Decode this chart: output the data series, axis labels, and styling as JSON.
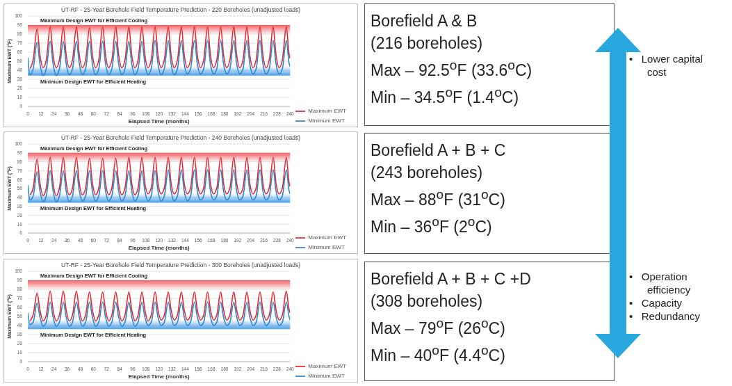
{
  "chart_data": [
    {
      "type": "line",
      "title": "UT-RF - 25-Year Borehole Field Temperature Prediction - 220 Boreholes (unadjusted loads)",
      "xlabel": "Elapsed Time (months)",
      "ylabel": "Maximum EWT (°F)",
      "xlim": [
        0,
        240
      ],
      "xticks": [
        0,
        12,
        24,
        36,
        48,
        60,
        72,
        84,
        96,
        108,
        120,
        132,
        144,
        156,
        168,
        180,
        192,
        204,
        216,
        228,
        240
      ],
      "ylim": [
        0,
        100
      ],
      "yticks": [
        0,
        10,
        20,
        30,
        40,
        50,
        60,
        70,
        80,
        90,
        100
      ],
      "grid": "y",
      "legend": "bottom right",
      "marker": "none",
      "line_style": "solid",
      "x": [
        0,
        2,
        5,
        8.5,
        11,
        14,
        17,
        20.5,
        23,
        26,
        29,
        32.5,
        35,
        38,
        41,
        44.5,
        47,
        50,
        53,
        56.5,
        59,
        62,
        65,
        68.5,
        71,
        74,
        77,
        80.5,
        83,
        86,
        89,
        92.5,
        95,
        98,
        101,
        104.5,
        107,
        110,
        113,
        116.5,
        119,
        122,
        125,
        128.5,
        131,
        134,
        137,
        140.5,
        143,
        146,
        149,
        152.5,
        155,
        158,
        161,
        164.5,
        167,
        170,
        173,
        176.5,
        179,
        182,
        185,
        188.5,
        191,
        194,
        197,
        200.5,
        203,
        206,
        209,
        212.5,
        215,
        218,
        221,
        224.5,
        227,
        230,
        233,
        236.5,
        239,
        240
      ],
      "bands": [
        {
          "axis": "y",
          "from": 80,
          "to": 90,
          "label": "Maximum Design EWT for Efficient Cooling",
          "color": "#f0474d"
        },
        {
          "axis": "y",
          "from": 34,
          "to": 44,
          "label": "Minimum Design EWT for Efficient Heating",
          "color": "#2f8fe8"
        }
      ],
      "series": [
        {
          "name": "Maximum EWT",
          "color": "#e8262f",
          "values": [
            null,
            42,
            52,
            86,
            58,
            43,
            52,
            88,
            58,
            43,
            52,
            88,
            58,
            43,
            52,
            88,
            58,
            43,
            52,
            87,
            58,
            43,
            52,
            88,
            58,
            43,
            52,
            88,
            58,
            43,
            52,
            88,
            58,
            43,
            52,
            88,
            58,
            43,
            52,
            88,
            58,
            43,
            52,
            88,
            58,
            43,
            52,
            88,
            58,
            43,
            52,
            88,
            58,
            43,
            52,
            88,
            58,
            43,
            52,
            88,
            58,
            43,
            52,
            88,
            58,
            43,
            52,
            88,
            58,
            43,
            52,
            88,
            58,
            43,
            52,
            88,
            58,
            43,
            52,
            88,
            58,
            53
          ]
        },
        {
          "name": "Minimum EWT",
          "color": "#2e86c8",
          "values": [
            54,
            35,
            42,
            71,
            48,
            34,
            42,
            72,
            48,
            34,
            42,
            72,
            48,
            35,
            42,
            72,
            48,
            35,
            42,
            72,
            48,
            35,
            42,
            72,
            48,
            35,
            42,
            72,
            48,
            35,
            42,
            72,
            48,
            35,
            42,
            72,
            48,
            35,
            42,
            73,
            48,
            35,
            42,
            73,
            48,
            35,
            42,
            73,
            48,
            36,
            42,
            73,
            48,
            36,
            42,
            73,
            48,
            36,
            42,
            73,
            48,
            36,
            42,
            73,
            48,
            36,
            42,
            73,
            48,
            36,
            42,
            73,
            48,
            36,
            42,
            73,
            48,
            36,
            42,
            73,
            48,
            44
          ]
        }
      ]
    },
    {
      "type": "line",
      "title": "UT-RF - 25-Year Borehole Field Temperature Prediction - 240 Boreholes (unadjusted loads)",
      "xlabel": "Elapsed Time (months)",
      "ylabel": "Maximum EWT (°F)",
      "xlim": [
        0,
        240
      ],
      "xticks": [
        0,
        12,
        24,
        36,
        48,
        60,
        72,
        84,
        96,
        108,
        120,
        132,
        144,
        156,
        168,
        180,
        192,
        204,
        216,
        228,
        240
      ],
      "ylim": [
        0,
        100
      ],
      "yticks": [
        0,
        10,
        20,
        30,
        40,
        50,
        60,
        70,
        80,
        90,
        100
      ],
      "grid": "y",
      "legend": "bottom right",
      "marker": "none",
      "line_style": "solid",
      "x": [
        0,
        2,
        5,
        8.5,
        11,
        14,
        17,
        20.5,
        23,
        26,
        29,
        32.5,
        35,
        38,
        41,
        44.5,
        47,
        50,
        53,
        56.5,
        59,
        62,
        65,
        68.5,
        71,
        74,
        77,
        80.5,
        83,
        86,
        89,
        92.5,
        95,
        98,
        101,
        104.5,
        107,
        110,
        113,
        116.5,
        119,
        122,
        125,
        128.5,
        131,
        134,
        137,
        140.5,
        143,
        146,
        149,
        152.5,
        155,
        158,
        161,
        164.5,
        167,
        170,
        173,
        176.5,
        179,
        182,
        185,
        188.5,
        191,
        194,
        197,
        200.5,
        203,
        206,
        209,
        212.5,
        215,
        218,
        221,
        224.5,
        227,
        230,
        233,
        236.5,
        239,
        240
      ],
      "bands": [
        {
          "axis": "y",
          "from": 80,
          "to": 90,
          "label": "Maximum Design EWT for Efficient Cooling",
          "color": "#f0474d"
        },
        {
          "axis": "y",
          "from": 34,
          "to": 44,
          "label": "Minimum Design EWT for Efficient Heating",
          "color": "#2f8fe8"
        }
      ],
      "series": [
        {
          "name": "Maximum EWT",
          "color": "#e8262f",
          "values": [
            null,
            43,
            51,
            83,
            57,
            42,
            51,
            85,
            57,
            42,
            51,
            85,
            57,
            43,
            51,
            85,
            57,
            43,
            51,
            84,
            57,
            43,
            51,
            84,
            57,
            43,
            51,
            84,
            57,
            43,
            51,
            85,
            57,
            43,
            51,
            85,
            57,
            44,
            51,
            85,
            57,
            44,
            51,
            85,
            57,
            44,
            51,
            85,
            57,
            44,
            51,
            85,
            57,
            44,
            51,
            85,
            57,
            44,
            51,
            85,
            57,
            44,
            51,
            85,
            57,
            44,
            51,
            85,
            57,
            44,
            51,
            85,
            57,
            44,
            51,
            85,
            57,
            44,
            51,
            85,
            57,
            52
          ]
        },
        {
          "name": "Minimum EWT",
          "color": "#2e86c8",
          "values": [
            54,
            37,
            42,
            69,
            48,
            35,
            42,
            70,
            48,
            35,
            42,
            70,
            48,
            35,
            42,
            70,
            48,
            36,
            42,
            70,
            48,
            36,
            42,
            70,
            48,
            36,
            42,
            70,
            48,
            36,
            42,
            70,
            48,
            36,
            42,
            70,
            48,
            36,
            42,
            70,
            48,
            36,
            42,
            71,
            48,
            36,
            42,
            71,
            48,
            36,
            42,
            71,
            48,
            37,
            42,
            71,
            48,
            37,
            42,
            71,
            48,
            37,
            42,
            71,
            48,
            37,
            42,
            71,
            48,
            37,
            42,
            71,
            48,
            37,
            42,
            71,
            48,
            37,
            42,
            71,
            48,
            44
          ]
        }
      ]
    },
    {
      "type": "line",
      "title": "UT-RF - 25-Year Borehole Field Temperature Prediction - 300 Boreholes (unadjusted loads)",
      "xlabel": "Elapsed Time (months)",
      "ylabel": "Maximum EWT (°F)",
      "xlim": [
        0,
        240
      ],
      "xticks": [
        0,
        12,
        24,
        36,
        48,
        60,
        72,
        84,
        96,
        108,
        120,
        132,
        144,
        156,
        168,
        180,
        192,
        204,
        216,
        228,
        240
      ],
      "ylim": [
        0,
        100
      ],
      "yticks": [
        0,
        10,
        20,
        30,
        40,
        50,
        60,
        70,
        80,
        90,
        100
      ],
      "grid": "y",
      "legend": "bottom right",
      "marker": "none",
      "line_style": "solid",
      "x": [
        0,
        2,
        5,
        8.5,
        11,
        14,
        17,
        20.5,
        23,
        26,
        29,
        32.5,
        35,
        38,
        41,
        44.5,
        47,
        50,
        53,
        56.5,
        59,
        62,
        65,
        68.5,
        71,
        74,
        77,
        80.5,
        83,
        86,
        89,
        92.5,
        95,
        98,
        101,
        104.5,
        107,
        110,
        113,
        116.5,
        119,
        122,
        125,
        128.5,
        131,
        134,
        137,
        140.5,
        143,
        146,
        149,
        152.5,
        155,
        158,
        161,
        164.5,
        167,
        170,
        173,
        176.5,
        179,
        182,
        185,
        188.5,
        191,
        194,
        197,
        200.5,
        203,
        206,
        209,
        212.5,
        215,
        218,
        221,
        224.5,
        227,
        230,
        233,
        236.5,
        239,
        240
      ],
      "bands": [
        {
          "axis": "y",
          "from": 80,
          "to": 90,
          "label": "Maximum Design EWT for Efficient Cooling",
          "color": "#f0474d"
        },
        {
          "axis": "y",
          "from": 36,
          "to": 46,
          "label": "Minimum Design EWT for Efficient Heating",
          "color": "#2f8fe8"
        }
      ],
      "series": [
        {
          "name": "Maximum EWT",
          "color": "#e8262f",
          "values": [
            null,
            45,
            52,
            76,
            58,
            45,
            52,
            78,
            58,
            45,
            52,
            78,
            58,
            45,
            52,
            78,
            58,
            45,
            52,
            77,
            58,
            45,
            52,
            77,
            58,
            45,
            52,
            77,
            58,
            45,
            52,
            77,
            58,
            45,
            52,
            77,
            58,
            45,
            52,
            77,
            58,
            46,
            52,
            77,
            58,
            46,
            52,
            77,
            58,
            46,
            52,
            77,
            58,
            46,
            52,
            77,
            58,
            46,
            52,
            77,
            58,
            46,
            52,
            77,
            58,
            46,
            52,
            77,
            58,
            46,
            52,
            77,
            58,
            46,
            52,
            77,
            58,
            46,
            52,
            78,
            58,
            54
          ]
        },
        {
          "name": "Minimum EWT",
          "color": "#2e86c8",
          "values": [
            54,
            41,
            44,
            65,
            50,
            39,
            44,
            66,
            50,
            39,
            44,
            66,
            50,
            39,
            44,
            66,
            50,
            39,
            44,
            66,
            50,
            39,
            44,
            66,
            50,
            39,
            44,
            66,
            50,
            39,
            44,
            66,
            50,
            39,
            44,
            66,
            50,
            40,
            44,
            66,
            50,
            40,
            44,
            66,
            50,
            40,
            44,
            66,
            50,
            40,
            44,
            66,
            50,
            40,
            44,
            66,
            50,
            40,
            44,
            66,
            50,
            40,
            44,
            66,
            50,
            40,
            44,
            66,
            50,
            40,
            44,
            66,
            50,
            40,
            44,
            66,
            50,
            40,
            44,
            66,
            50,
            46
          ]
        }
      ]
    },
    {
      "type": "other",
      "title": "Borefield A & B",
      "annotations": [
        "(216 boreholes)",
        "Max – 92.5$^{o}$F (33.6$^{o}$C)",
        "Min – 34.5$^{o}$F (1.4$^{o}$C)"
      ]
    },
    {
      "type": "other",
      "title": "Borefield A + B + C",
      "annotations": [
        "(243 boreholes)",
        "Max – 88$^{o}$F (31$^{o}$C)",
        "Min – 36$^{o}$F (2$^{o}$C)"
      ]
    },
    {
      "type": "other",
      "title": "Borefield A + B + C +D",
      "annotations": [
        "(308 boreholes)",
        "Max – 79$^{o}$F (26$^{o}$C)",
        "Min – 40$^{o}$F (4.4$^{o}$C)"
      ]
    },
    {
      "type": "other",
      "annotations": [
        "•   Lower capital cost"
      ]
    },
    {
      "type": "other",
      "annotations": [
        "•   Operation efficiency",
        "•   Capacity",
        "•   Redundancy"
      ]
    }
  ]
}
